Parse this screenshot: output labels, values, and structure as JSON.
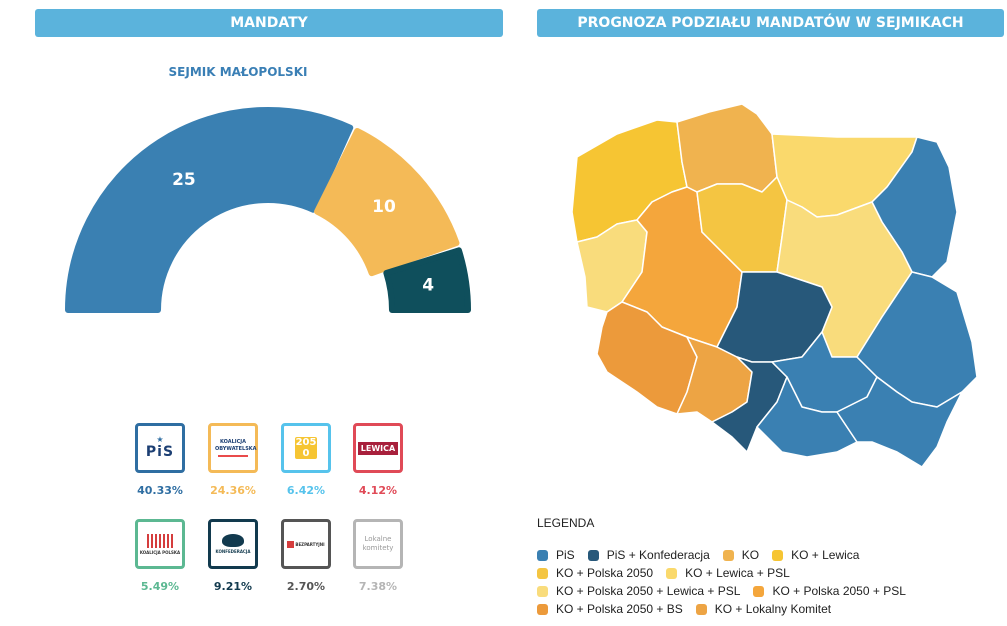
{
  "headers": {
    "left": "MANDATY",
    "right": "PROGNOZA PODZIAŁU MANDATÓW W SEJMIKACH"
  },
  "chart_data": {
    "type": "pie",
    "subtype": "semi-donut",
    "title": "SEJMIK MAŁOPOLSKI",
    "slices": [
      {
        "label": "PiS",
        "value": 25,
        "color": "#3a80b2"
      },
      {
        "label": "KO",
        "value": 10,
        "color": "#f4ba57"
      },
      {
        "label": "Konfederacja",
        "value": 4,
        "color": "#0f4f5c"
      }
    ]
  },
  "parties": [
    {
      "name": "PiS",
      "logo_text": "PiS",
      "percent": "40.33%",
      "color": "#2f6ea2"
    },
    {
      "name": "Koalicja Obywatelska",
      "logo_text": "KOALICJA OBYWATELSKA",
      "percent": "24.36%",
      "color": "#f4ba57"
    },
    {
      "name": "Polska 2050",
      "logo_text": "2050",
      "percent": "6.42%",
      "color": "#56c3ec"
    },
    {
      "name": "Lewica",
      "logo_text": "LEWICA",
      "percent": "4.12%",
      "color": "#e04a57"
    },
    {
      "name": "Koalicja Polska",
      "logo_text": "KOALICJA POLSKA",
      "percent": "5.49%",
      "color": "#5cb892"
    },
    {
      "name": "Konfederacja",
      "logo_text": "KONFEDERACJA",
      "percent": "9.21%",
      "color": "#123a4e"
    },
    {
      "name": "Bezpartyjni Samorządowcy",
      "logo_text": "BEZPARTYJNI",
      "percent": "2.70%",
      "color": "#555555"
    },
    {
      "name": "Lokalne komitety",
      "logo_text": "Lokalne komitety",
      "percent": "7.38%",
      "color": "#b5b5b5"
    }
  ],
  "legend": {
    "title": "LEGENDA",
    "rows": [
      [
        {
          "label": "PiS",
          "color": "#3a80b2"
        },
        {
          "label": "PiS + Konfederacja",
          "color": "#27587a"
        },
        {
          "label": "KO",
          "color": "#f0b34f"
        },
        {
          "label": "KO + Lewica",
          "color": "#f6c533"
        }
      ],
      [
        {
          "label": "KO + Polska 2050",
          "color": "#f4c542"
        },
        {
          "label": "KO + Lewica + PSL",
          "color": "#fad96c"
        }
      ],
      [
        {
          "label": "KO + Polska 2050 + Lewica + PSL",
          "color": "#f9dc7c"
        },
        {
          "label": "KO + Polska 2050 + PSL",
          "color": "#f4a63c"
        }
      ],
      [
        {
          "label": "KO + Polska 2050 + BS",
          "color": "#ec9a3b"
        },
        {
          "label": "KO + Lokalny Komitet",
          "color": "#eda444"
        }
      ]
    ]
  },
  "regions": [
    {
      "name": "zachodniopomorskie",
      "category": "KO + Lewica",
      "color": "#f6c533"
    },
    {
      "name": "pomorskie",
      "category": "KO",
      "color": "#f0b34f"
    },
    {
      "name": "warmińsko-mazurskie",
      "category": "KO + Lewica + PSL",
      "color": "#fad96c"
    },
    {
      "name": "podlaskie",
      "category": "PiS",
      "color": "#3a80b2"
    },
    {
      "name": "lubuskie",
      "category": "KO + Polska 2050 + Lewica + PSL",
      "color": "#f9dc7c"
    },
    {
      "name": "wielkopolskie",
      "category": "KO + Polska 2050 + PSL",
      "color": "#f4a63c"
    },
    {
      "name": "kujawsko-pomorskie",
      "category": "KO + Polska 2050",
      "color": "#f4c542"
    },
    {
      "name": "mazowieckie",
      "category": "KO + Polska 2050 + Lewica + PSL",
      "color": "#f9dc7c"
    },
    {
      "name": "dolnośląskie",
      "category": "KO + Polska 2050 + BS",
      "color": "#ec9a3b"
    },
    {
      "name": "opolskie",
      "category": "KO + Lokalny Komitet",
      "color": "#eda444"
    },
    {
      "name": "łódzkie",
      "category": "PiS + Konfederacja",
      "color": "#27587a"
    },
    {
      "name": "śląskie",
      "category": "PiS + Konfederacja",
      "color": "#27587a"
    },
    {
      "name": "świętokrzyskie",
      "category": "PiS",
      "color": "#3a80b2"
    },
    {
      "name": "lubelskie",
      "category": "PiS",
      "color": "#3a80b2"
    },
    {
      "name": "małopolskie",
      "category": "PiS",
      "color": "#3a80b2"
    },
    {
      "name": "podkarpackie",
      "category": "PiS",
      "color": "#3a80b2"
    }
  ]
}
